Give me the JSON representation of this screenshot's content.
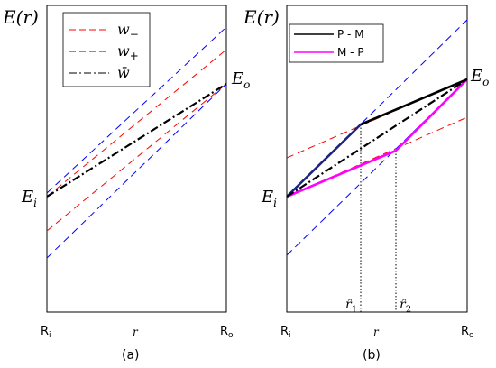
{
  "panel_a": {
    "y_label": "E(r)",
    "x_ticks": {
      "left": "R",
      "left_sub": "i",
      "right": "R",
      "right_sub": "o"
    },
    "x_label": "r",
    "caption": "(a)",
    "point_labels": {
      "Ei": "E",
      "Ei_sub": "i",
      "Eo": "E",
      "Eo_sub": "o"
    },
    "legend": [
      {
        "label": "w",
        "sub": "−",
        "style": "dashed",
        "color": "#ff0000"
      },
      {
        "label": "w",
        "sub": "+",
        "style": "dashed",
        "color": "#0000ff"
      },
      {
        "label": "w̄",
        "sub": "",
        "style": "dashdot",
        "color": "#000000"
      }
    ]
  },
  "panel_b": {
    "y_label": "E(r)",
    "x_ticks": {
      "left": "R",
      "left_sub": "i",
      "right": "R",
      "right_sub": "o"
    },
    "x_label": "r",
    "caption": "(b)",
    "point_labels": {
      "Ei": "E",
      "Ei_sub": "i",
      "Eo": "E",
      "Eo_sub": "o"
    },
    "markers": [
      {
        "label": "r̂",
        "sub": "1"
      },
      {
        "label": "r̂",
        "sub": "2"
      }
    ],
    "legend": [
      {
        "label": "P - M",
        "color": "#000000"
      },
      {
        "label": "M - P",
        "color": "#ff00ff"
      }
    ]
  },
  "colors": {
    "red": "#ff0000",
    "blue": "#0000ff",
    "black": "#000000",
    "magenta": "#ff00ff",
    "navy": "#1a237e"
  }
}
